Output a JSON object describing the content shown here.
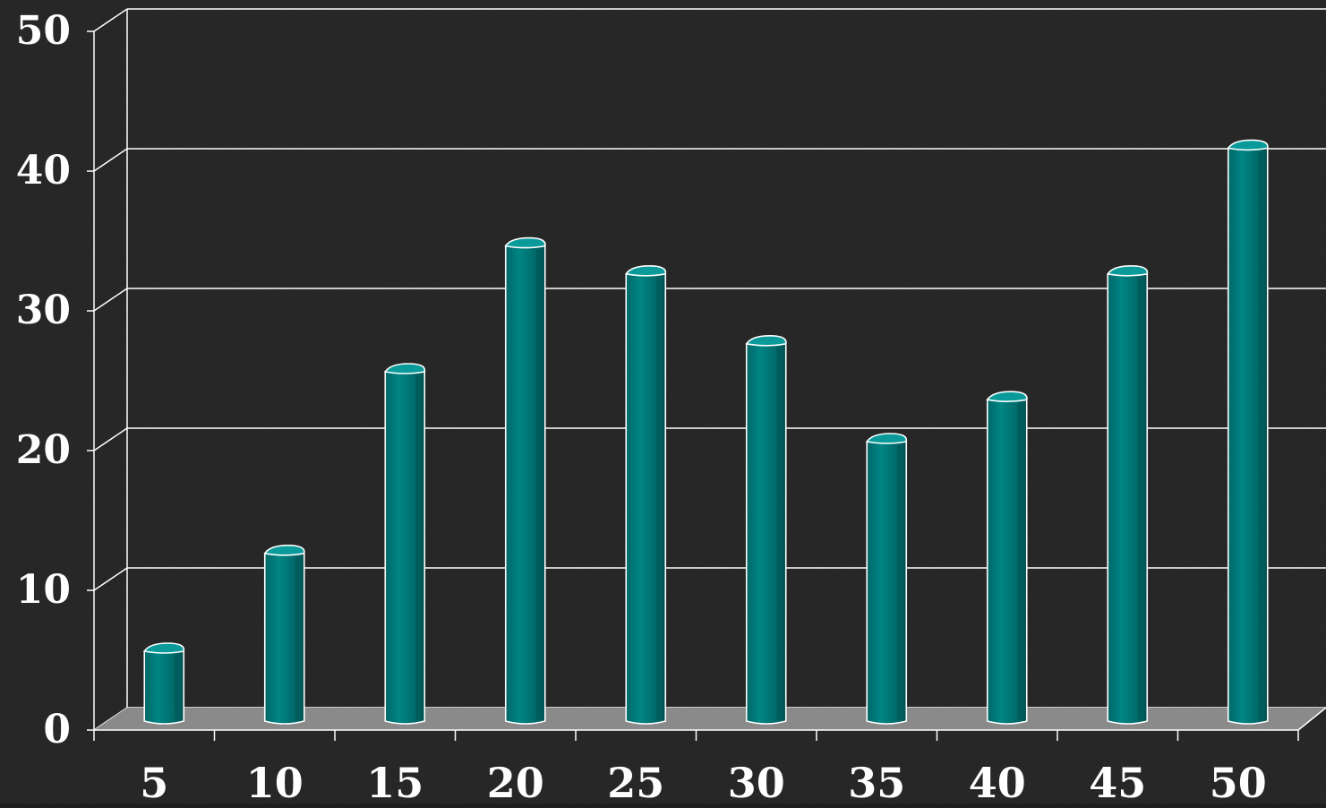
{
  "chart_data": {
    "type": "bar",
    "categories": [
      "5",
      "10",
      "15",
      "20",
      "25",
      "30",
      "35",
      "40",
      "45",
      "50"
    ],
    "values": [
      5,
      12,
      25,
      34,
      32,
      27,
      20,
      23,
      32,
      41
    ],
    "title": "",
    "xlabel": "",
    "ylabel": "",
    "ylim": [
      0,
      50
    ],
    "yticks": [
      "0",
      "10",
      "20",
      "30",
      "40",
      "50"
    ],
    "grid": true,
    "legend": "none",
    "style": "3d-cylinder"
  },
  "colors": {
    "background": "#1e1e1e",
    "bar_front": "#007b7b",
    "bar_side": "#005b5b",
    "bar_top": "#0a9a9a",
    "floor": "#8a8a8a",
    "grid": "#ffffff",
    "text": "#ffffff"
  }
}
